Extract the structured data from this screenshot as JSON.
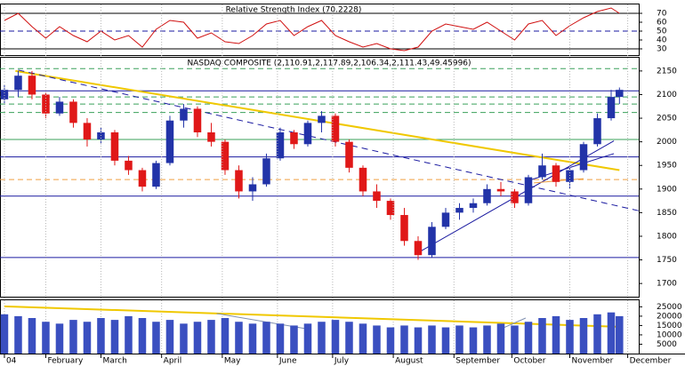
{
  "chart_data": [
    {
      "type": "line",
      "title": "Relative Strength Index (70.2228)",
      "color": "#d01010",
      "x": [
        1,
        6,
        11,
        16,
        21,
        26,
        31,
        36,
        41,
        46,
        51,
        56,
        61,
        66,
        71,
        76,
        81,
        86,
        91,
        96,
        101,
        106,
        111,
        116,
        121,
        126,
        131,
        136,
        141,
        146,
        151,
        156,
        161,
        166,
        171,
        176,
        181,
        186,
        191,
        196,
        201,
        206,
        211,
        216,
        221,
        224
      ],
      "values": [
        62,
        70,
        55,
        42,
        55,
        45,
        38,
        50,
        40,
        45,
        32,
        52,
        62,
        60,
        42,
        48,
        38,
        36,
        45,
        58,
        62,
        45,
        55,
        62,
        45,
        38,
        32,
        36,
        30,
        28,
        32,
        50,
        58,
        55,
        52,
        60,
        50,
        40,
        58,
        62,
        45,
        56,
        65,
        72,
        76,
        70
      ],
      "xlim": [
        -0.6,
        231
      ],
      "ylim": [
        23,
        80
      ],
      "yticks": [
        30,
        40,
        50,
        60,
        70
      ],
      "hlines": [
        {
          "value": 70,
          "color": "#000000",
          "dash": false
        },
        {
          "value": 50,
          "color": "#1a1aa0",
          "dash": true
        },
        {
          "value": 30,
          "color": "#000000",
          "dash": false
        }
      ]
    },
    {
      "type": "candlestick",
      "title": "NASDAQ COMPOSITE (2,110.91,2,117.89,2,106.34,2,111.43,49.45996)",
      "up_color": "#2233a8",
      "down_color": "#e01818",
      "x": [
        1,
        6,
        11,
        16,
        21,
        26,
        31,
        36,
        41,
        46,
        51,
        56,
        61,
        66,
        71,
        76,
        81,
        86,
        91,
        96,
        101,
        106,
        111,
        116,
        121,
        126,
        131,
        136,
        141,
        146,
        151,
        156,
        161,
        166,
        171,
        176,
        181,
        186,
        191,
        196,
        201,
        206,
        211,
        216,
        221,
        224
      ],
      "open": [
        2090,
        2110,
        2140,
        2100,
        2060,
        2085,
        2040,
        2005,
        2020,
        1960,
        1940,
        1905,
        1955,
        2045,
        2070,
        2020,
        2000,
        1940,
        1895,
        1910,
        1965,
        2020,
        1995,
        2040,
        2055,
        2000,
        1945,
        1895,
        1875,
        1845,
        1790,
        1760,
        1820,
        1850,
        1860,
        1870,
        1900,
        1895,
        1870,
        1925,
        1950,
        1915,
        1940,
        1995,
        2050,
        2095
      ],
      "high": [
        2120,
        2150,
        2150,
        2105,
        2095,
        2090,
        2050,
        2030,
        2025,
        1970,
        1945,
        1960,
        2055,
        2080,
        2075,
        2040,
        2005,
        1950,
        1925,
        1975,
        2030,
        2025,
        2045,
        2065,
        2060,
        2005,
        1950,
        1910,
        1880,
        1860,
        1800,
        1830,
        1860,
        1870,
        1880,
        1910,
        1915,
        1900,
        1930,
        1975,
        1955,
        1945,
        2000,
        2060,
        2110,
        2115
      ],
      "low": [
        2080,
        2095,
        2090,
        2050,
        2055,
        2030,
        1990,
        1995,
        1950,
        1930,
        1895,
        1900,
        1950,
        2030,
        2010,
        1990,
        1930,
        1880,
        1875,
        1905,
        1960,
        1985,
        1990,
        2020,
        1990,
        1935,
        1885,
        1860,
        1835,
        1780,
        1750,
        1755,
        1815,
        1835,
        1850,
        1865,
        1885,
        1860,
        1865,
        1920,
        1905,
        1900,
        1935,
        1990,
        2045,
        2080
      ],
      "close": [
        2110,
        2140,
        2100,
        2060,
        2085,
        2040,
        2005,
        2020,
        1960,
        1940,
        1905,
        1955,
        2045,
        2070,
        2020,
        2000,
        1940,
        1895,
        1910,
        1965,
        2020,
        1995,
        2040,
        2055,
        2000,
        1945,
        1895,
        1875,
        1845,
        1790,
        1760,
        1820,
        1850,
        1860,
        1870,
        1900,
        1895,
        1870,
        1925,
        1950,
        1915,
        1940,
        1995,
        2050,
        2095,
        2110
      ],
      "xlim": [
        -0.6,
        231
      ],
      "ylim": [
        1672,
        2178
      ],
      "yticks": [
        1700,
        1750,
        1800,
        1850,
        1900,
        1950,
        2000,
        2050,
        2100,
        2150
      ],
      "hlines": [
        {
          "value": 2155,
          "color": "#3aa05a",
          "dash": true
        },
        {
          "value": 2108,
          "color": "#1a1aa0",
          "dash": false
        },
        {
          "value": 2095,
          "color": "#3aa05a",
          "dash": true
        },
        {
          "value": 2080,
          "color": "#3aa05a",
          "dash": true
        },
        {
          "value": 2062,
          "color": "#3aa05a",
          "dash": true
        },
        {
          "value": 2005,
          "color": "#3aa05a",
          "dash": false
        },
        {
          "value": 1968,
          "color": "#1a1aa0",
          "dash": false
        },
        {
          "value": 1920,
          "color": "#f0a040",
          "dash": true
        },
        {
          "value": 1885,
          "color": "#1a1aa0",
          "dash": false
        },
        {
          "value": 1755,
          "color": "#1a1aa0",
          "dash": false
        }
      ],
      "trendlines": [
        {
          "x": [
            5,
            224
          ],
          "y": [
            2150,
            1940
          ],
          "color": "#f0c800",
          "dash": false
        },
        {
          "x": [
            6,
            231
          ],
          "y": [
            2152,
            1854
          ],
          "color": "#1a1aa0",
          "dash": true
        },
        {
          "x": [
            150,
            222
          ],
          "y": [
            1762,
            2002
          ],
          "color": "#1a1aa0",
          "dash": false
        },
        {
          "x": [
            191,
            222
          ],
          "y": [
            1918,
            1975
          ],
          "color": "#1a1aa0",
          "dash": false
        },
        {
          "x": [
            193,
            211
          ],
          "y": [
            1913,
            1922
          ],
          "color": "#f0a040",
          "dash": false
        }
      ]
    },
    {
      "type": "bar",
      "color": "#3a4fc0",
      "x": [
        1,
        6,
        11,
        16,
        21,
        26,
        31,
        36,
        41,
        46,
        51,
        56,
        61,
        66,
        71,
        76,
        81,
        86,
        91,
        96,
        101,
        106,
        111,
        116,
        121,
        126,
        131,
        136,
        141,
        146,
        151,
        156,
        161,
        166,
        171,
        176,
        181,
        186,
        191,
        196,
        201,
        206,
        211,
        216,
        221,
        224
      ],
      "values": [
        21000,
        20000,
        19000,
        17000,
        16000,
        18000,
        17000,
        19000,
        18000,
        20000,
        19000,
        17000,
        18000,
        16000,
        17000,
        18000,
        19000,
        17000,
        16000,
        17000,
        16000,
        15000,
        16000,
        17000,
        18000,
        17000,
        16000,
        15000,
        14000,
        15000,
        14000,
        15000,
        14000,
        15000,
        14000,
        15000,
        16000,
        15000,
        17000,
        19000,
        20000,
        18000,
        19000,
        21000,
        22000,
        20000
      ],
      "xlim": [
        -0.6,
        231
      ],
      "ylim": [
        0,
        28500
      ],
      "yticks": [
        5000,
        10000,
        15000,
        20000,
        25000
      ],
      "xticks": [
        {
          "value": 1,
          "label": "04"
        },
        {
          "value": 16,
          "label": "February"
        },
        {
          "value": 36,
          "label": "March"
        },
        {
          "value": 58,
          "label": "April"
        },
        {
          "value": 80,
          "label": "May"
        },
        {
          "value": 100,
          "label": "June"
        },
        {
          "value": 120,
          "label": "July"
        },
        {
          "value": 142,
          "label": "August"
        },
        {
          "value": 164,
          "label": "September"
        },
        {
          "value": 185,
          "label": "October"
        },
        {
          "value": 206,
          "label": "November"
        },
        {
          "value": 227,
          "label": "December"
        }
      ],
      "trendlines": [
        {
          "x": [
            1,
            224
          ],
          "y": [
            25240,
            14300
          ],
          "color": "#f0c800",
          "dash": false
        },
        {
          "x": [
            78,
            112
          ],
          "y": [
            21400,
            12900
          ],
          "color": "#8090b0",
          "dash": false
        },
        {
          "x": [
            182,
            190
          ],
          "y": [
            13800,
            19000
          ],
          "color": "#8090b0",
          "dash": false
        }
      ]
    }
  ]
}
